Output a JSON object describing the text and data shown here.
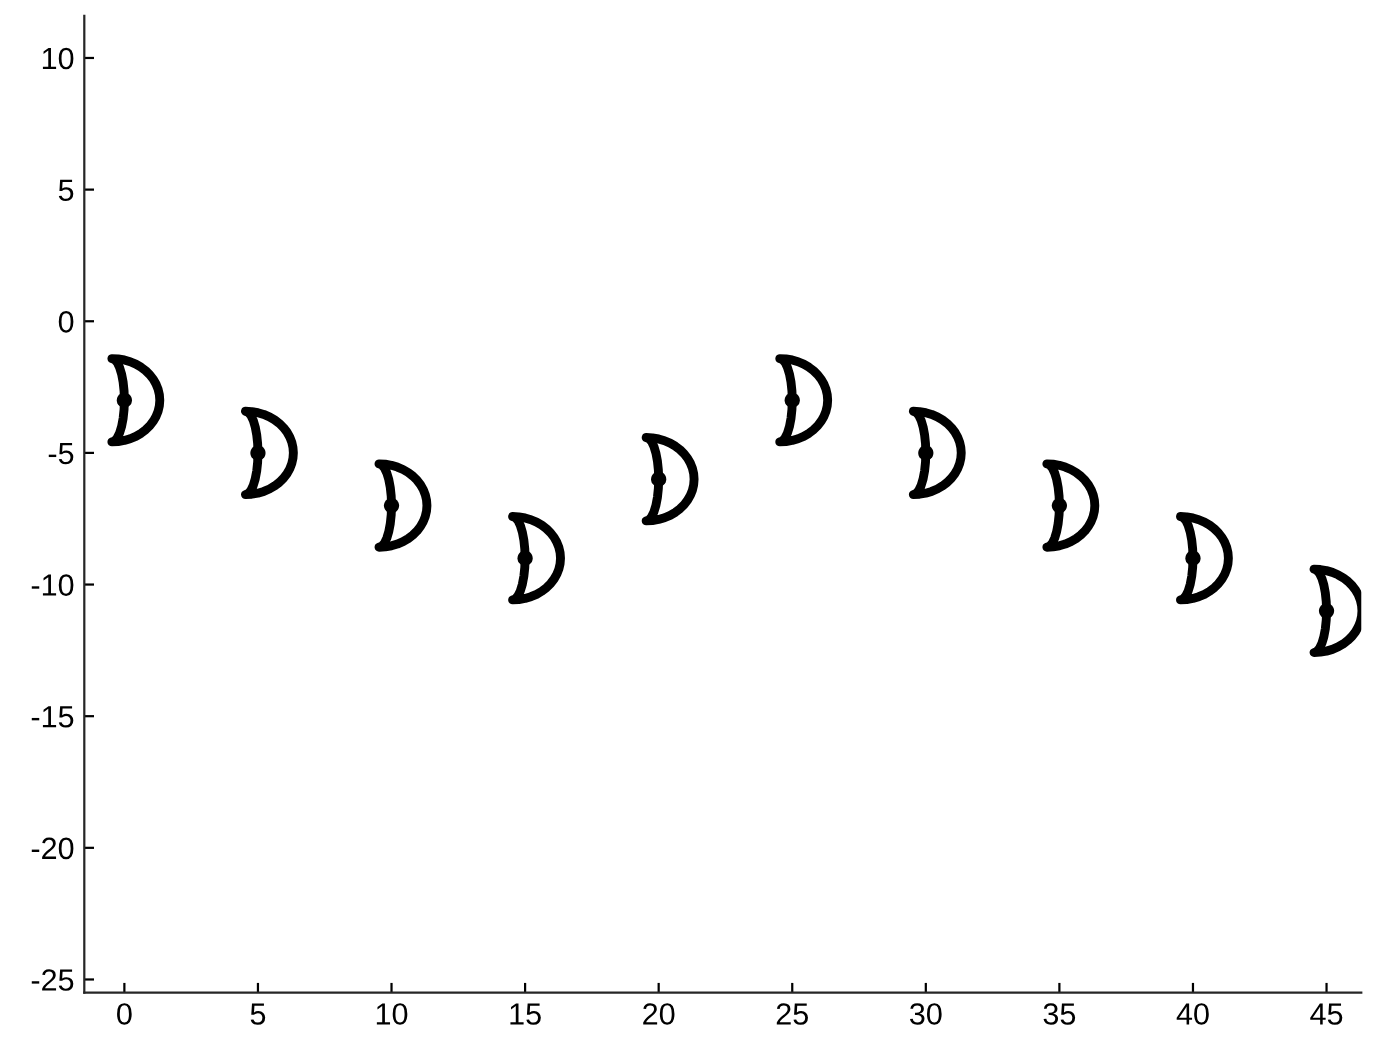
{
  "chart_data": {
    "type": "scatter",
    "x": [
      0,
      5,
      10,
      15,
      20,
      25,
      30,
      35,
      40,
      45
    ],
    "series": [
      {
        "color": "#000000",
        "values": [
          -3,
          -5,
          -7,
          -9,
          -6,
          -3,
          -5,
          -7,
          -9,
          -11
        ]
      }
    ],
    "xlim": [
      -1.5,
      46.3
    ],
    "ylim": [
      -25.5,
      11.6
    ],
    "xticks": [
      0,
      5,
      10,
      15,
      20,
      25,
      30,
      35,
      40,
      45
    ],
    "yticks": [
      -25,
      -20,
      -15,
      -10,
      -5,
      0,
      5,
      10
    ],
    "grid": false,
    "legend": false
  }
}
